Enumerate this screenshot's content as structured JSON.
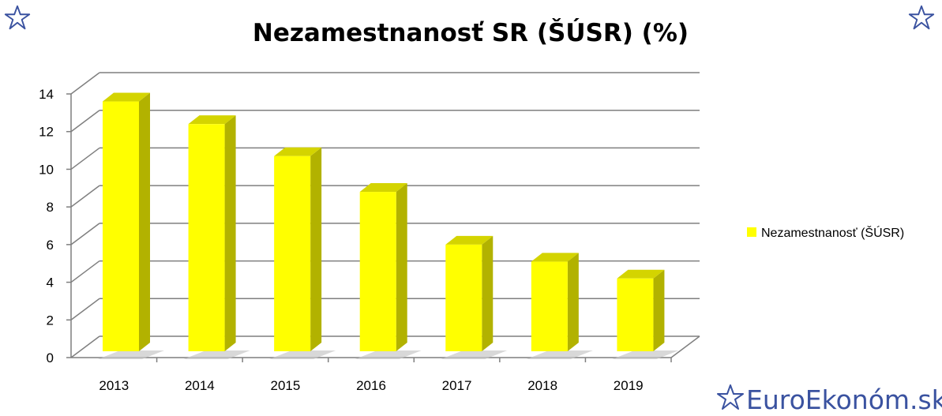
{
  "chart_data": {
    "type": "bar",
    "title": "Nezamestnanosť SR (ŠÚSR) (%)",
    "xlabel": "",
    "ylabel": "",
    "categories": [
      "2013",
      "2014",
      "2015",
      "2016",
      "2017",
      "2018",
      "2019"
    ],
    "series": [
      {
        "name": "Nezamestnanosť  (ŠÚSR)",
        "values": [
          13.6,
          12.4,
          10.7,
          8.8,
          6.0,
          5.1,
          4.2
        ],
        "color": "#ffff00",
        "side_color": "#b2b200",
        "top_color": "#d4d400"
      }
    ],
    "ylim": [
      0,
      14
    ],
    "yticks": [
      "0",
      "2",
      "4",
      "6",
      "8",
      "10",
      "12",
      "14"
    ],
    "grid": true,
    "legend_position": "right",
    "projection": "3d"
  },
  "branding": {
    "logo_text": "EuroEkonóm.sk",
    "color": "#3a52a0"
  },
  "decorations": {
    "corner_icon": "star-outline-icon"
  }
}
